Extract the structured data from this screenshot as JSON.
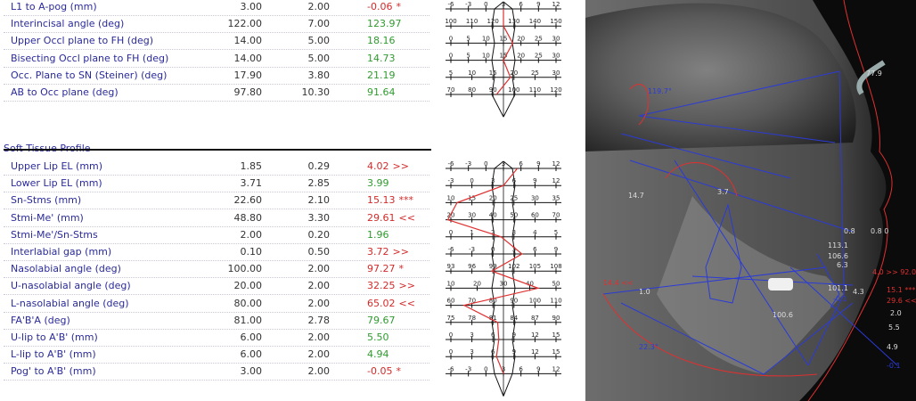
{
  "rows_top": [
    {
      "label": "L1 to A-pog (mm)",
      "norm": "3.00",
      "sd": "2.00",
      "value": "-0.06",
      "flag": "*",
      "color": "red",
      "axis": [
        "-6",
        "-3",
        "0",
        "3",
        "6",
        "9",
        "12"
      ],
      "pos": 0.5
    },
    {
      "label": "Interincisal angle (deg)",
      "norm": "122.00",
      "sd": "7.00",
      "value": "123.97",
      "flag": "",
      "color": "green",
      "axis": [
        "100",
        "110",
        "120",
        "130",
        "140",
        "150"
      ],
      "pos": 0.5
    },
    {
      "label": "Upper Occl plane to FH (deg)",
      "norm": "14.00",
      "sd": "5.00",
      "value": "18.16",
      "flag": "",
      "color": "green",
      "axis": [
        "0",
        "5",
        "10",
        "15",
        "20",
        "25",
        "30"
      ],
      "pos": 0.58
    },
    {
      "label": "Bisecting Occl plane to FH (deg)",
      "norm": "14.00",
      "sd": "5.00",
      "value": "14.73",
      "flag": "",
      "color": "green",
      "axis": [
        "0",
        "5",
        "10",
        "15",
        "20",
        "25",
        "30"
      ],
      "pos": 0.5
    },
    {
      "label": "Occ. Plane to SN (Steiner) (deg)",
      "norm": "17.90",
      "sd": "3.80",
      "value": "21.19",
      "flag": "",
      "color": "green",
      "axis": [
        "5",
        "10",
        "15",
        "20",
        "25",
        "30"
      ],
      "pos": 0.56
    },
    {
      "label": "AB to Occ plane (deg)",
      "norm": "97.80",
      "sd": "10.30",
      "value": "91.64",
      "flag": "",
      "color": "green",
      "axis": [
        "70",
        "80",
        "90",
        "100",
        "110",
        "120"
      ],
      "pos": 0.44
    }
  ],
  "section_title": "Soft Tissue Profile",
  "rows_bottom": [
    {
      "label": "Upper Lip EL (mm)",
      "norm": "1.85",
      "sd": "0.29",
      "value": "4.02",
      "flag": ">>",
      "color": "red",
      "axis": [
        "-6",
        "-3",
        "0",
        "3",
        "6",
        "9",
        "12"
      ],
      "pos": 0.62
    },
    {
      "label": "Lower Lip EL (mm)",
      "norm": "3.71",
      "sd": "2.85",
      "value": "3.99",
      "flag": "",
      "color": "green",
      "axis": [
        "-3",
        "0",
        "3",
        "6",
        "9",
        "12"
      ],
      "pos": 0.5
    },
    {
      "label": "Sn-Stms (mm)",
      "norm": "22.60",
      "sd": "2.10",
      "value": "15.13",
      "flag": "***",
      "color": "red",
      "axis": [
        "10",
        "15",
        "20",
        "25",
        "30",
        "35"
      ],
      "pos": 0.1
    },
    {
      "label": "Stmi-Me' (mm)",
      "norm": "48.80",
      "sd": "3.30",
      "value": "29.61",
      "flag": "<<",
      "color": "red",
      "axis": [
        "20",
        "30",
        "40",
        "50",
        "60",
        "70"
      ],
      "pos": 0.02
    },
    {
      "label": "Stmi-Me'/Sn-Stms",
      "norm": "2.00",
      "sd": "0.20",
      "value": "1.96",
      "flag": "",
      "color": "green",
      "axis": [
        "0",
        "1",
        "2",
        "3",
        "4",
        "5"
      ],
      "pos": 0.48
    },
    {
      "label": "Interlabial gap (mm)",
      "norm": "0.10",
      "sd": "0.50",
      "value": "3.72",
      "flag": ">>",
      "color": "red",
      "axis": [
        "-6",
        "-3",
        "0",
        "3",
        "6",
        "9"
      ],
      "pos": 0.66
    },
    {
      "label": "Nasolabial angle (deg)",
      "norm": "100.00",
      "sd": "2.00",
      "value": "97.27",
      "flag": "*",
      "color": "red",
      "axis": [
        "93",
        "96",
        "99",
        "102",
        "105",
        "108"
      ],
      "pos": 0.4
    },
    {
      "label": "U-nasolabial angle (deg)",
      "norm": "20.00",
      "sd": "2.00",
      "value": "32.25",
      "flag": ">>",
      "color": "red",
      "axis": [
        "10",
        "20",
        "30",
        "40",
        "50"
      ],
      "pos": 0.8
    },
    {
      "label": "L-nasolabial angle (deg)",
      "norm": "80.00",
      "sd": "2.00",
      "value": "65.02",
      "flag": "<<",
      "color": "red",
      "axis": [
        "60",
        "70",
        "80",
        "90",
        "100",
        "110"
      ],
      "pos": 0.16
    },
    {
      "label": "FA'B'A (deg)",
      "norm": "81.00",
      "sd": "2.78",
      "value": "79.67",
      "flag": "",
      "color": "green",
      "axis": [
        "75",
        "78",
        "81",
        "84",
        "87",
        "90"
      ],
      "pos": 0.45
    },
    {
      "label": "U-lip to A'B' (mm)",
      "norm": "6.00",
      "sd": "2.00",
      "value": "5.50",
      "flag": "",
      "color": "green",
      "axis": [
        "0",
        "3",
        "6",
        "9",
        "12",
        "15"
      ],
      "pos": 0.46
    },
    {
      "label": "L-lip to A'B' (mm)",
      "norm": "6.00",
      "sd": "2.00",
      "value": "4.94",
      "flag": "",
      "color": "green",
      "axis": [
        "0",
        "3",
        "6",
        "9",
        "12",
        "15"
      ],
      "pos": 0.44
    },
    {
      "label": "Pog' to A'B' (mm)",
      "norm": "3.00",
      "sd": "2.00",
      "value": "-0.05",
      "flag": "*",
      "color": "red",
      "axis": [
        "-6",
        "-3",
        "0",
        "3",
        "6",
        "9",
        "12"
      ],
      "pos": 0.5
    }
  ],
  "xray_labels": [
    "119.7°",
    "77.9",
    "14.7",
    "3.7",
    "113.1",
    "106.6",
    "0.8",
    "6.3",
    "101.1",
    "-0.1",
    "100.6",
    "1.0",
    "14.4 <<",
    "22.3°",
    "4.0 >> 92.0°",
    "15.1 ***",
    "29.6 <<",
    "2.0",
    "5.5",
    "4.9",
    "-0.1",
    "4.3",
    "0.8 0"
  ],
  "colors": {
    "label": "#2a2a9a",
    "ok": "#2f9b2f",
    "alert": "#d42a2a",
    "trace_red": "#e03030",
    "trace_blue": "#2b3bd6"
  }
}
